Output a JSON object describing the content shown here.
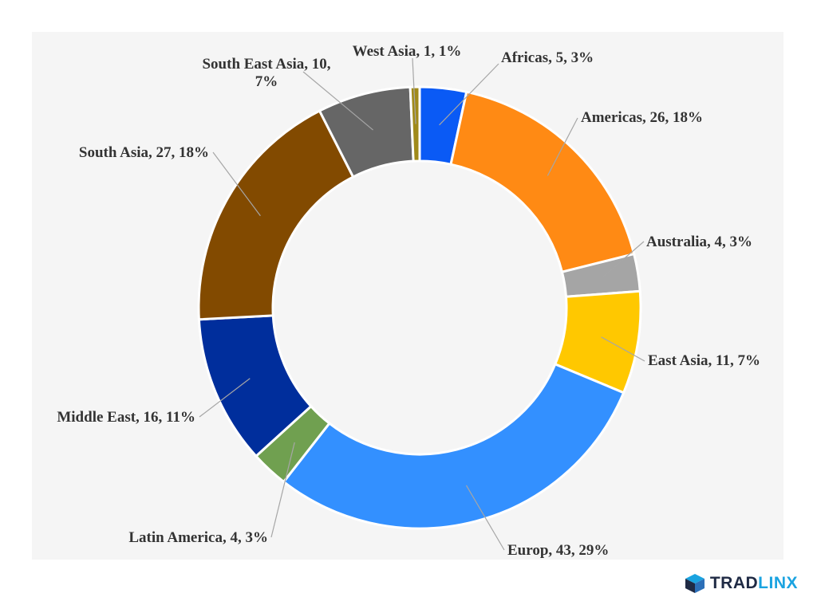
{
  "chart_data": {
    "type": "pie",
    "variant": "donut",
    "title": "",
    "slices": [
      {
        "name": "Africas",
        "value": 5,
        "percent": "3%",
        "color": "#0a5af5",
        "label": "Africas, 5, 3%"
      },
      {
        "name": "Americas",
        "value": 26,
        "percent": "18%",
        "color": "#ff8a14",
        "label": "Americas, 26, 18%"
      },
      {
        "name": "Australia",
        "value": 4,
        "percent": "3%",
        "color": "#a5a5a5",
        "label": "Australia, 4, 3%"
      },
      {
        "name": "East Asia",
        "value": 11,
        "percent": "7%",
        "color": "#ffc800",
        "label": "East Asia, 11, 7%"
      },
      {
        "name": "Europ",
        "value": 43,
        "percent": "29%",
        "color": "#3390ff",
        "label": "Europ, 43, 29%"
      },
      {
        "name": "Latin America",
        "value": 4,
        "percent": "3%",
        "color": "#70a050",
        "label": "Latin America, 4, 3%"
      },
      {
        "name": "Middle East",
        "value": 16,
        "percent": "11%",
        "color": "#002e9c",
        "label": "Middle East, 16, 11%"
      },
      {
        "name": "South Asia",
        "value": 27,
        "percent": "18%",
        "color": "#824a00",
        "label": "South Asia, 27, 18%"
      },
      {
        "name": "South East Asia",
        "value": 10,
        "percent": "7%",
        "color": "#666666",
        "label": "South East Asia, 10, 7%",
        "label_lines": [
          "South East Asia, 10,",
          "7%"
        ]
      },
      {
        "name": "West Asia",
        "value": 1,
        "percent": "1%",
        "color": "#a08a1a",
        "label": "West Asia, 1, 1%"
      }
    ]
  },
  "brand": {
    "part1": "TRAD",
    "part2": "LINX",
    "colors": {
      "dark": "#1f2a44",
      "light": "#1aa3e0"
    },
    "icon": "cube-logo-icon"
  }
}
